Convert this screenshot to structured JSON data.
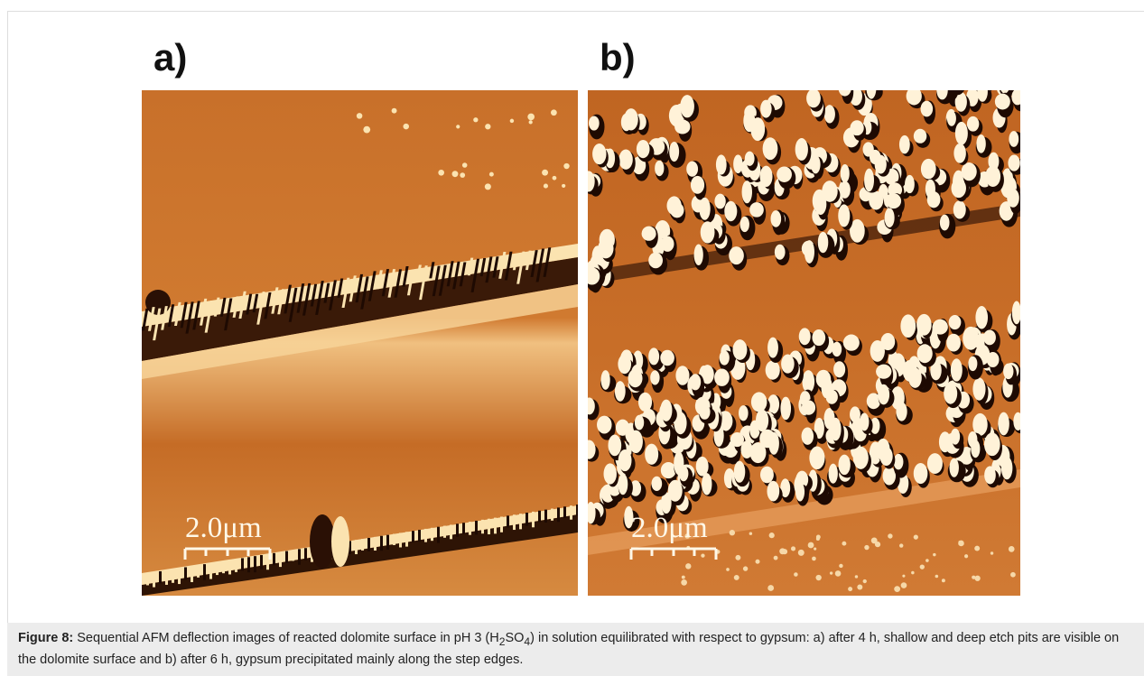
{
  "figure": {
    "panels": [
      {
        "label": "a)",
        "scale_bar": "2.0μm"
      },
      {
        "label": "b)",
        "scale_bar": "2.0μm"
      }
    ],
    "caption": {
      "label": "Figure 8:",
      "parts": [
        " Sequential AFM deflection images of reacted dolomite surface in pH 3 (H",
        "2",
        "SO",
        "4",
        ") in solution equilibrated with respect to gypsum: a) after 4 h, shallow and deep etch pits are visible on the dolomite surface and b) after 6 h, gypsum precipitated mainly along the step edges."
      ]
    }
  }
}
